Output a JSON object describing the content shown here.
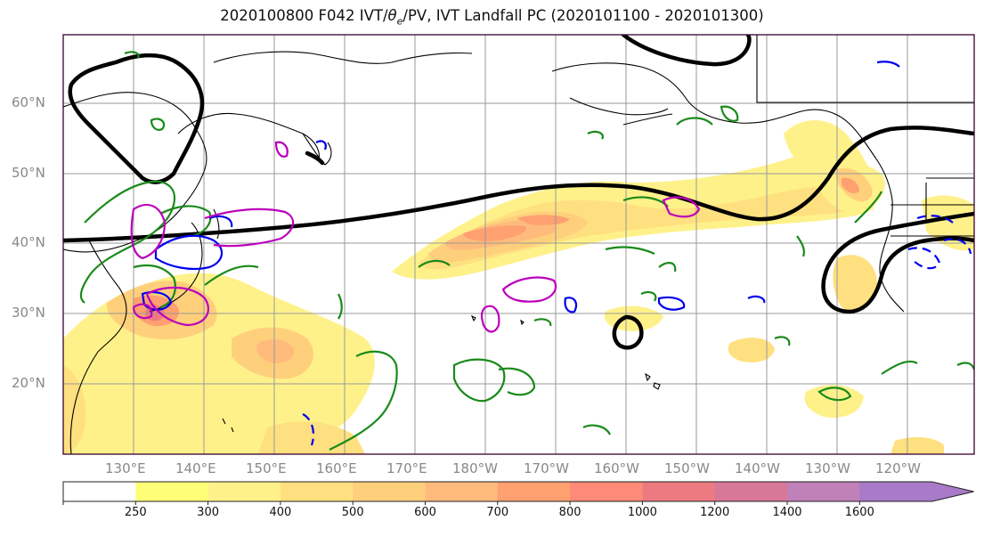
{
  "title": "2020100800 F042 IVT/θe/PV, IVT Landfall PC (2020101100 - 2020101300)",
  "title_parts": {
    "pre": "2020100800 F042 IVT/",
    "theta": "θ",
    "sub": "e",
    "post": "/PV, IVT Landfall PC (2020101100 - 2020101300)"
  },
  "lat_labels": [
    "60°N",
    "50°N",
    "40°N",
    "30°N",
    "20°N"
  ],
  "lon_labels": [
    "130°E",
    "140°E",
    "150°E",
    "160°E",
    "170°E",
    "180°W",
    "170°W",
    "160°W",
    "150°W",
    "140°W",
    "130°W",
    "120°W"
  ],
  "colorbar": {
    "levels": [
      "250",
      "300",
      "400",
      "500",
      "600",
      "700",
      "800",
      "1000",
      "1200",
      "1400",
      "1600"
    ],
    "colors": [
      "#ffffff",
      "#ffff77",
      "#fff18a",
      "#ffe080",
      "#ffd07c",
      "#ffbb7c",
      "#ffa070",
      "#ff8a78",
      "#ec7a80",
      "#d87898",
      "#c080b8",
      "#a87ac8"
    ]
  },
  "colors": {
    "ivt_landfall_contour": "#000000",
    "theta_e_contour": "#1a8a1a",
    "pv_contour_positive": "#0000ee",
    "pv_contour_magenta": "#bb00bb"
  }
}
